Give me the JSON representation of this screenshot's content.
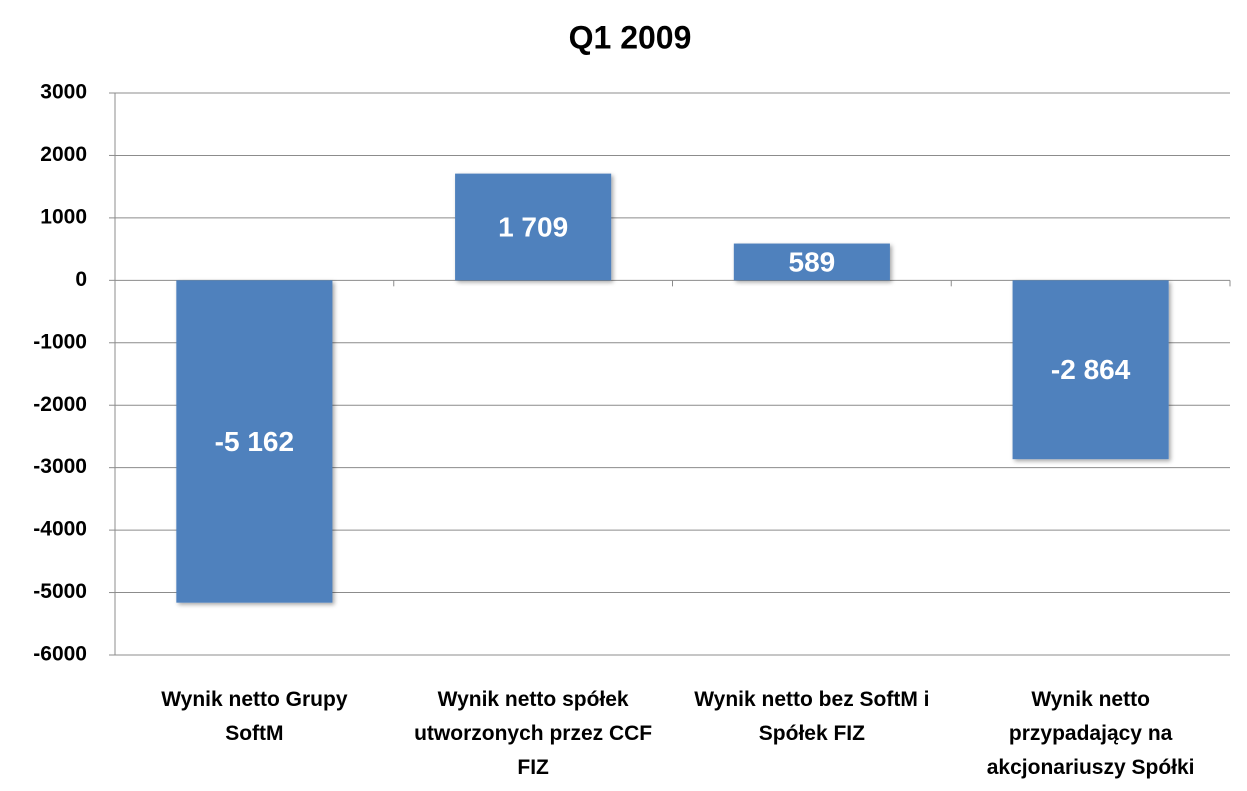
{
  "chart_data": {
    "type": "bar",
    "title": "Q1 2009",
    "categories": [
      "Wynik netto Grupy SoftM",
      "Wynik netto spółek utworzonych przez CCF FIZ",
      "Wynik netto bez SoftM i Spółek FIZ",
      "Wynik netto przypadający na akcjonariuszy Spółki"
    ],
    "values": [
      -5162,
      1709,
      589,
      -2864
    ],
    "value_labels": [
      "-5 162",
      "1 709",
      "589",
      "-2 864"
    ],
    "color": "#4f81bd",
    "ylim": [
      -6000,
      3000
    ],
    "yticks": [
      -6000,
      -5000,
      -4000,
      -3000,
      -2000,
      -1000,
      0,
      1000,
      2000,
      3000
    ],
    "grid": true
  }
}
